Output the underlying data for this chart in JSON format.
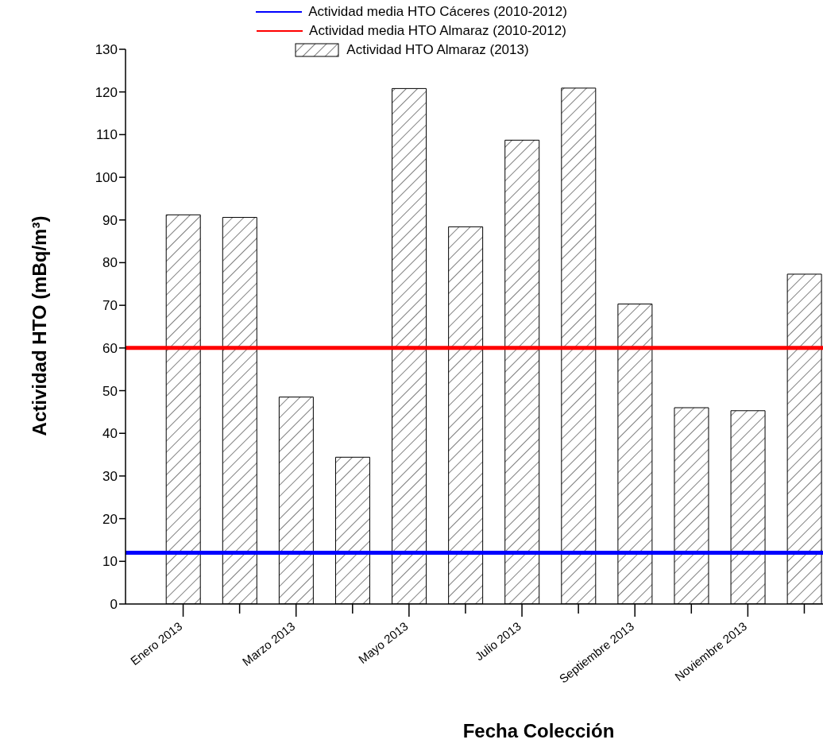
{
  "chart_data": {
    "type": "bar",
    "xlabel": "Fecha Colección",
    "ylabel": "Actividad HTO (mBq/m³)",
    "categories": [
      "Enero 2013",
      null,
      "Marzo 2013",
      null,
      "Mayo 2013",
      null,
      "Julio 2013",
      null,
      "Septiembre 2013",
      null,
      "Noviembre 2013",
      null
    ],
    "series": [
      {
        "name": "Actividad HTO Almaraz (2013)",
        "color": "#000000",
        "values": [
          91.2,
          90.6,
          48.5,
          34.4,
          120.8,
          88.4,
          108.7,
          120.9,
          70.3,
          46.0,
          45.3,
          77.3
        ]
      }
    ],
    "ref_lines": [
      {
        "axis": "y",
        "value": 12,
        "label": "Actividad media HTO Cáceres (2010-2012)",
        "color": "#0000ff"
      },
      {
        "axis": "y",
        "value": 60,
        "label": "Actividad media HTO Almaraz (2010-2012)",
        "color": "#ff0000"
      }
    ],
    "ylim": [
      0,
      130
    ],
    "yticks": [
      0,
      10,
      20,
      30,
      40,
      50,
      60,
      70,
      80,
      90,
      100,
      110,
      120,
      130
    ],
    "grid": false,
    "legend": "top"
  }
}
